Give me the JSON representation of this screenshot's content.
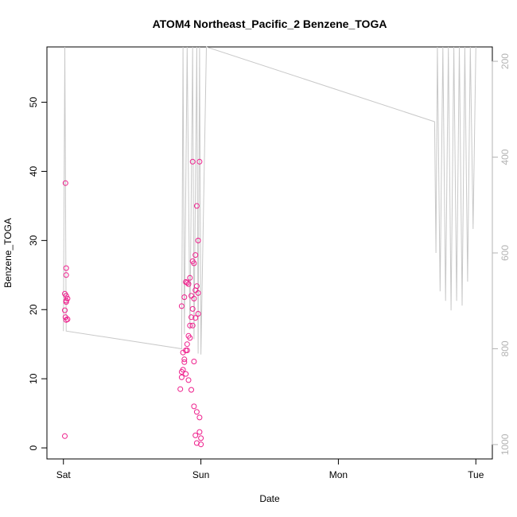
{
  "chart_data": {
    "type": "scatter",
    "title": "ATOM4 Northeast_Pacific_2 Benzene_TOGA",
    "xlabel": "Date",
    "ylabel": "Benzene_TOGA",
    "x_ticks": [
      "Sat",
      "Sun",
      "Mon",
      "Tue"
    ],
    "x_tick_days": [
      0,
      1,
      2,
      3
    ],
    "xlim_days": [
      -0.12,
      3.12
    ],
    "ylim": [
      -1.6,
      58
    ],
    "y_ticks": [
      0,
      10,
      20,
      30,
      40,
      50
    ],
    "y2_ticks": [
      200,
      400,
      600,
      800,
      1000
    ],
    "y2lim_reversed": [
      1030,
      170
    ],
    "grid": false,
    "legend": "none",
    "colors": {
      "points": "#ee1f8c",
      "secondary_line": "#c8c8c8",
      "right_axis": "#b3b3b3"
    },
    "series": [
      {
        "role": "primary",
        "axis": "left",
        "style": "points",
        "clusters": [
          {
            "x": [
              0.01,
              0.02,
              0.015,
              0.01,
              0.02,
              0.03,
              0.02,
              0.01,
              0.02,
              0.02,
              0.015,
              0.02,
              0.03
            ],
            "y": [
              1.7,
              18.5,
              18.9,
              19.9,
              21.3,
              21.6,
              22.0,
              22.3,
              25.0,
              26.0,
              38.3,
              21.1,
              18.6
            ]
          },
          {
            "x": [
              0.85,
              0.86,
              0.87,
              0.88,
              0.89,
              0.9,
              0.91,
              0.92,
              0.93,
              0.94,
              0.95,
              0.96,
              0.97,
              0.98,
              0.99,
              1.0,
              0.86,
              0.88,
              0.9,
              0.92,
              0.94,
              0.96,
              0.98,
              0.87,
              0.89,
              0.91,
              0.93,
              0.95,
              0.97,
              0.99,
              0.86,
              0.88,
              0.9,
              0.92,
              0.94,
              0.96,
              0.98,
              1.0,
              0.89,
              0.91,
              0.93,
              0.95,
              0.97,
              0.99,
              0.94,
              0.95,
              0.96,
              0.97
            ],
            "y": [
              8.5,
              10.2,
              11.3,
              12.4,
              14.1,
              15.0,
              16.2,
              17.7,
              18.9,
              20.1,
              21.6,
              22.8,
              23.4,
              19.4,
              4.4,
              0.5,
              20.5,
              21.8,
              23.9,
              24.6,
              27.0,
              27.9,
              30.0,
              13.8,
              10.7,
              9.8,
              8.4,
              6.0,
              5.2,
              2.3,
              11.0,
              12.8,
              14.1,
              15.9,
              17.7,
              18.8,
              22.4,
              1.4,
              24.0,
              23.7,
              22.0,
              26.7,
              35.0,
              41.4,
              41.4,
              12.5,
              1.8,
              0.7
            ]
          }
        ]
      },
      {
        "role": "secondary",
        "axis": "right",
        "style": "line",
        "points": [
          {
            "x": 0.0,
            "y": 763
          },
          {
            "x": 0.01,
            "y": 170
          },
          {
            "x": 0.02,
            "y": 763
          },
          {
            "x": 0.86,
            "y": 800
          },
          {
            "x": 0.87,
            "y": 170
          },
          {
            "x": 0.88,
            "y": 770
          },
          {
            "x": 0.9,
            "y": 170
          },
          {
            "x": 0.92,
            "y": 760
          },
          {
            "x": 0.94,
            "y": 170
          },
          {
            "x": 0.95,
            "y": 780
          },
          {
            "x": 0.97,
            "y": 170
          },
          {
            "x": 0.98,
            "y": 810
          },
          {
            "x": 0.99,
            "y": 170
          },
          {
            "x": 1.0,
            "y": 812
          },
          {
            "x": 1.04,
            "y": 170
          },
          {
            "x": 2.7,
            "y": 326
          },
          {
            "x": 2.71,
            "y": 600
          },
          {
            "x": 2.72,
            "y": 170
          },
          {
            "x": 2.74,
            "y": 680
          },
          {
            "x": 2.76,
            "y": 170
          },
          {
            "x": 2.78,
            "y": 700
          },
          {
            "x": 2.8,
            "y": 170
          },
          {
            "x": 2.82,
            "y": 720
          },
          {
            "x": 2.84,
            "y": 170
          },
          {
            "x": 2.86,
            "y": 700
          },
          {
            "x": 2.88,
            "y": 170
          },
          {
            "x": 2.9,
            "y": 710
          },
          {
            "x": 2.92,
            "y": 170
          },
          {
            "x": 2.94,
            "y": 660
          },
          {
            "x": 2.96,
            "y": 170
          },
          {
            "x": 2.98,
            "y": 550
          },
          {
            "x": 3.0,
            "y": 170
          }
        ]
      }
    ]
  }
}
